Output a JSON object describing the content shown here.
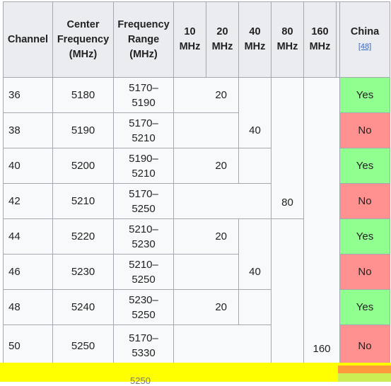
{
  "headers": {
    "channel": "Channel",
    "center_freq": [
      "Center",
      "Frequency",
      "(MHz)"
    ],
    "freq_range": [
      "Frequency",
      "Range",
      "(MHz)"
    ],
    "w10": [
      "10",
      "MHz"
    ],
    "w20": [
      "20",
      "MHz"
    ],
    "w40": [
      "40",
      "MHz"
    ],
    "w80": [
      "80",
      "MHz"
    ],
    "w160": [
      "160",
      "MHz"
    ],
    "china": "China",
    "china_ref": "[48]"
  },
  "rows": [
    {
      "channel": "36",
      "center": "5180",
      "range": [
        "5170–",
        "5190"
      ],
      "china": "Yes"
    },
    {
      "channel": "38",
      "center": "5190",
      "range": [
        "5170–",
        "5210"
      ],
      "china": "No"
    },
    {
      "channel": "40",
      "center": "5200",
      "range": [
        "5190–",
        "5210"
      ],
      "china": "Yes"
    },
    {
      "channel": "42",
      "center": "5210",
      "range": [
        "5170–",
        "5250"
      ],
      "china": "No"
    },
    {
      "channel": "44",
      "center": "5220",
      "range": [
        "5210–",
        "5230"
      ],
      "china": "Yes"
    },
    {
      "channel": "46",
      "center": "5230",
      "range": [
        "5210–",
        "5250"
      ],
      "china": "No"
    },
    {
      "channel": "48",
      "center": "5240",
      "range": [
        "5230–",
        "5250"
      ],
      "china": "Yes"
    },
    {
      "channel": "50",
      "center": "5250",
      "range": [
        "5170–",
        "5330"
      ],
      "china": "No"
    }
  ],
  "bandwidth_cells": {
    "w20_a": "20",
    "w20_b": "20",
    "w20_c": "20",
    "w20_d": "20",
    "w40_a": "40",
    "w40_b": "40",
    "w80": "80",
    "w160": "160"
  },
  "partial_row": {
    "range": "5250"
  },
  "colors": {
    "yes": "#90ff90",
    "no": "#ff9090",
    "header": "#eaecf0",
    "highlight": "#ffff00"
  }
}
